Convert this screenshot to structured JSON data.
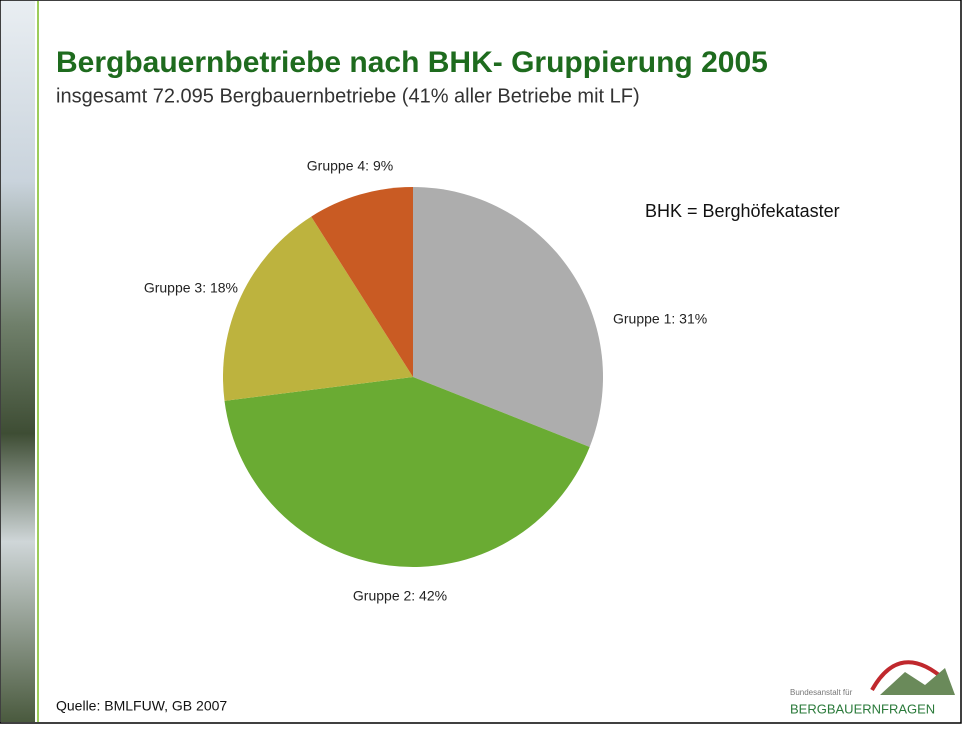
{
  "chart_data": {
    "type": "pie",
    "title": "Bergbauernbetriebe nach BHK- Gruppierung 2005",
    "subtitle": "insgesamt 72.095 Bergbauernbetriebe (41% aller Betriebe mit LF)",
    "annotation": "BHK = Berghöfekataster",
    "source": "Quelle: BMLFUW, GB 2007",
    "logo": {
      "small": "Bundesanstalt für",
      "name": "BERGBAUERNFRAGEN"
    },
    "values": [
      31,
      42,
      18,
      9
    ],
    "value_labels": [
      "Gruppe 1: 31%",
      "Gruppe 2: 42%",
      "Gruppe 3: 18%",
      "Gruppe 4: 9%"
    ],
    "colors": [
      "#adadad",
      "#6aab33",
      "#bdb33e",
      "#c95b23"
    ]
  }
}
